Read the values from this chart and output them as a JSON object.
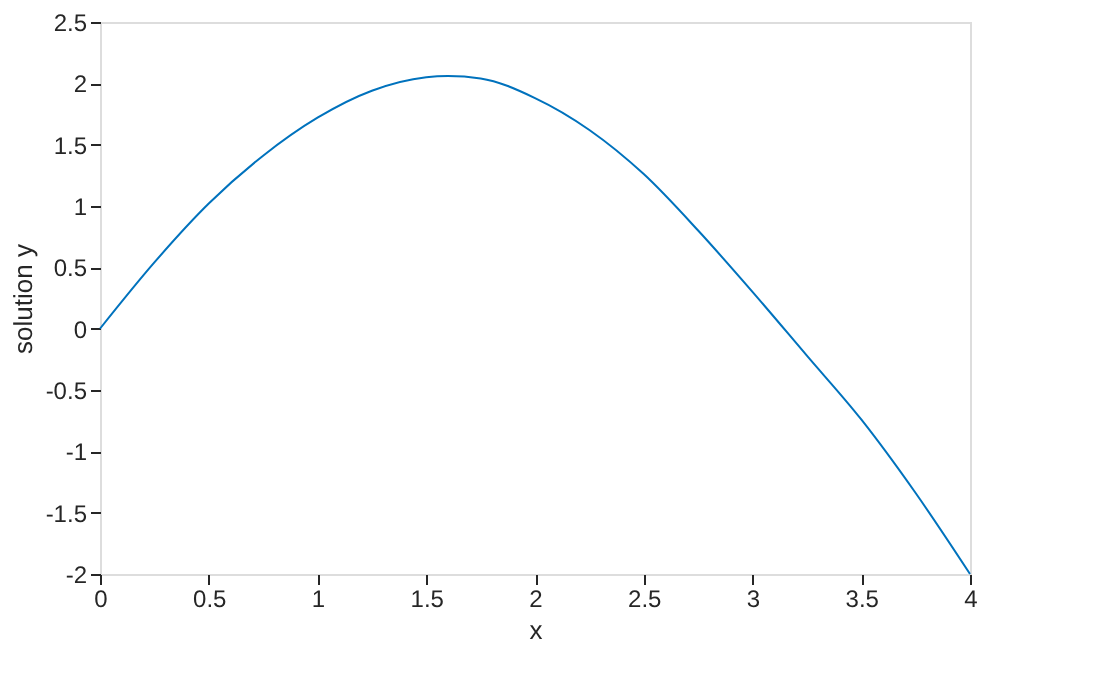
{
  "chart_data": {
    "type": "line",
    "xlabel": "x",
    "ylabel": "solution y",
    "x": [
      0,
      0.25,
      0.5,
      0.75,
      1,
      1.25,
      1.5,
      1.6,
      1.75,
      2,
      2.25,
      2.5,
      2.75,
      3,
      3.25,
      3.5,
      3.75,
      4
    ],
    "series": [
      {
        "color": "#0072bd",
        "values": [
          0,
          0.54,
          1.02,
          1.41,
          1.72,
          1.94,
          2.05,
          2.06,
          2.04,
          1.88,
          1.62,
          1.26,
          0.8,
          0.3,
          -0.22,
          -0.74,
          -1.34,
          -2.0
        ]
      }
    ],
    "xlim": [
      0,
      4
    ],
    "xticks": [
      0,
      0.5,
      1,
      1.5,
      2,
      2.5,
      3,
      3.5,
      4
    ],
    "ylim": [
      -2,
      2.5
    ],
    "yticks": [
      -2,
      -1.5,
      -1,
      -0.5,
      0,
      0.5,
      1,
      1.5,
      2,
      2.5
    ],
    "grid": false,
    "legend": false,
    "marker": "none",
    "line_style": "solid"
  }
}
